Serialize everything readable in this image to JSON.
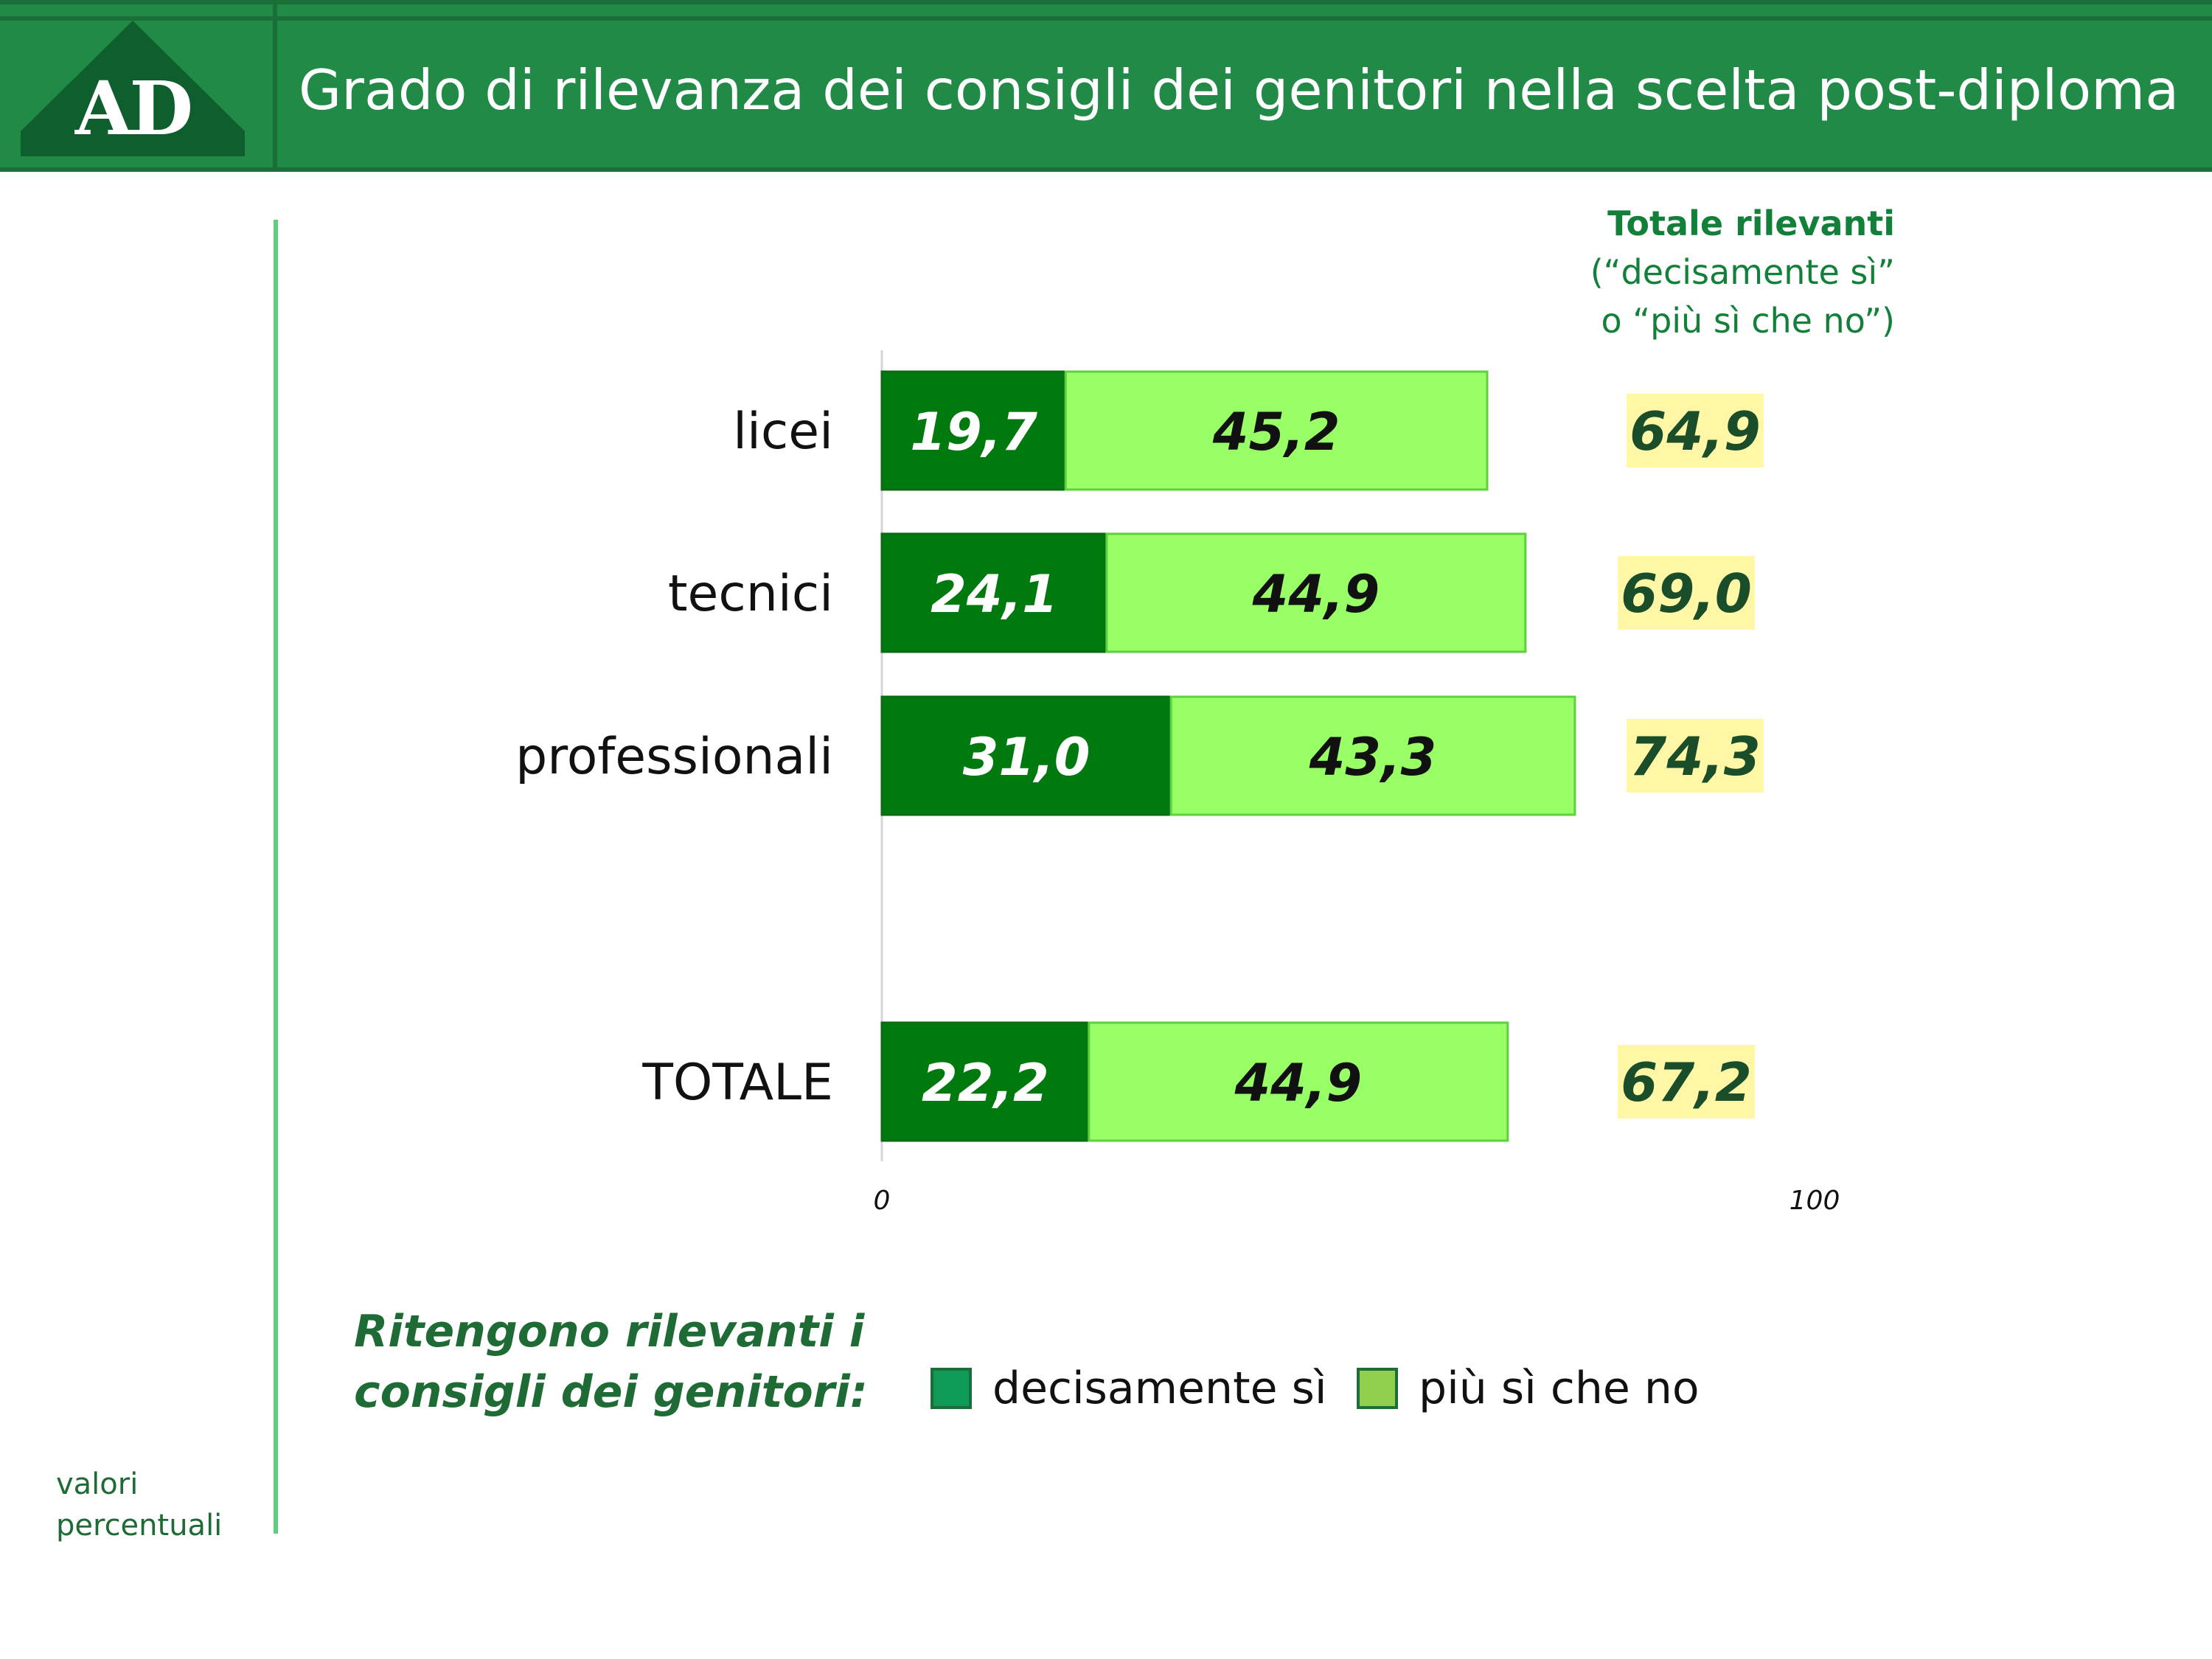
{
  "header": {
    "logo_text": "AD",
    "title": "Grado di rilevanza dei consigli dei genitori nella scelta post-diploma"
  },
  "totals_header": {
    "line1": "Totale rilevanti",
    "line2": "(“decisamente sì”",
    "line3": "o “più sì che no”)"
  },
  "legend": {
    "title": "Ritengono rilevanti i consigli dei genitori:",
    "items": [
      {
        "label": "decisamente sì",
        "color": "#0f9a57"
      },
      {
        "label": "più sì che no",
        "color": "#93cf4f"
      }
    ]
  },
  "footnote": {
    "line1": "valori",
    "line2": "percentuali"
  },
  "colors": {
    "decisamente": "#007a0e",
    "piu": "#99ff66",
    "total_box": "#fff7a6",
    "total_text": "#1a4d2a"
  },
  "chart_data": {
    "type": "bar",
    "orientation": "horizontal",
    "stacked": true,
    "categories": [
      "licei",
      "tecnici",
      "professionali",
      "TOTALE"
    ],
    "series": [
      {
        "name": "decisamente sì",
        "values": [
          19.7,
          24.1,
          31.0,
          22.2
        ],
        "labels": [
          "19,7",
          "24,1",
          "31,0",
          "22,2"
        ]
      },
      {
        "name": "più sì che no",
        "values": [
          45.2,
          44.9,
          43.3,
          44.9
        ],
        "labels": [
          "45,2",
          "44,9",
          "43,3",
          "44,9"
        ]
      }
    ],
    "totals": {
      "values": [
        64.9,
        69.0,
        74.3,
        67.2
      ],
      "labels": [
        "64,9",
        "69,0",
        "74,3",
        "67,2"
      ]
    },
    "xlim": [
      0,
      100
    ],
    "x_ticks": [
      "0",
      "100"
    ],
    "grid": false
  }
}
